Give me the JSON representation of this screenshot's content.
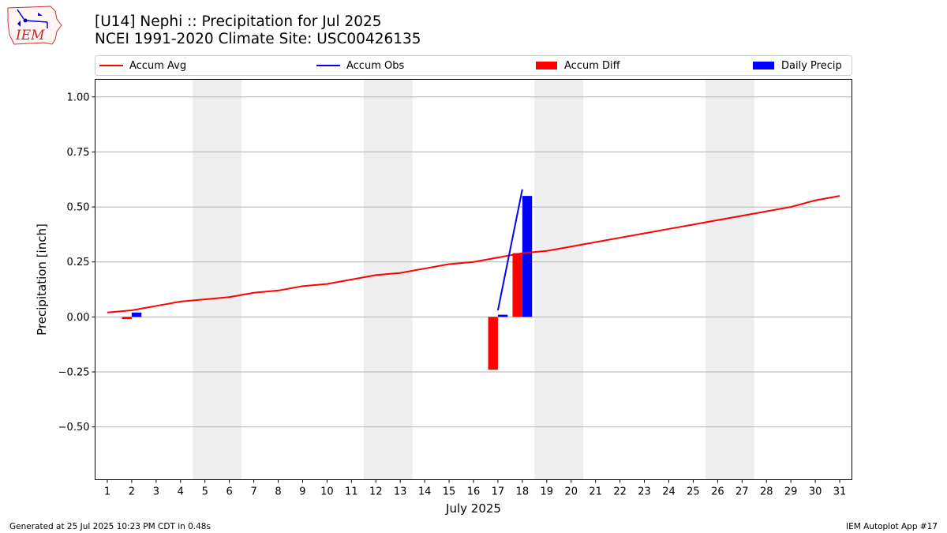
{
  "header": {
    "title_line1": "[U14] Nephi :: Precipitation for Jul 2025",
    "title_line2": "NCEI 1991-2020 Climate Site: USC00426135"
  },
  "logo": {
    "text": "IEM",
    "icon": "iem-iowa-logo"
  },
  "legend": {
    "placement": "top",
    "items": [
      {
        "label": "Accum Avg",
        "kind": "line",
        "color": "#ff0000"
      },
      {
        "label": "Accum Obs",
        "kind": "line",
        "color": "#0000ff"
      },
      {
        "label": "Accum Diff",
        "kind": "bar",
        "color": "#ff0000"
      },
      {
        "label": "Daily Precip",
        "kind": "bar",
        "color": "#0000ff"
      }
    ]
  },
  "footer": {
    "left": "Generated at 25 Jul 2025 10:23 PM CDT in 0.48s",
    "right": "IEM Autoplot App #17"
  },
  "chart_data": {
    "type": "bar",
    "xlabel": "July 2025",
    "ylabel": "Precipitation [inch]",
    "xlim": [
      0.5,
      31.5
    ],
    "ylim": [
      -0.74,
      1.08
    ],
    "yticks": [
      -0.5,
      -0.25,
      0.0,
      0.25,
      0.5,
      0.75,
      1.0
    ],
    "ytick_labels": [
      "−0.50",
      "−0.25",
      "0.00",
      "0.25",
      "0.50",
      "0.75",
      "1.00"
    ],
    "xticks": [
      1,
      2,
      3,
      4,
      5,
      6,
      7,
      8,
      9,
      10,
      11,
      12,
      13,
      14,
      15,
      16,
      17,
      18,
      19,
      20,
      21,
      22,
      23,
      24,
      25,
      26,
      27,
      28,
      29,
      30,
      31
    ],
    "grid": "horizontal",
    "weekend_shading": [
      [
        4.5,
        6.5
      ],
      [
        11.5,
        13.5
      ],
      [
        18.5,
        20.5
      ],
      [
        25.5,
        27.5
      ]
    ],
    "shade_color": "#eeeeee",
    "series": [
      {
        "name": "Accum Avg",
        "kind": "line",
        "color": "#ff0000",
        "x": [
          1,
          2,
          3,
          4,
          5,
          6,
          7,
          8,
          9,
          10,
          11,
          12,
          13,
          14,
          15,
          16,
          17,
          18,
          19,
          20,
          21,
          22,
          23,
          24,
          25,
          26,
          27,
          28,
          29,
          30,
          31
        ],
        "y": [
          0.02,
          0.03,
          0.05,
          0.07,
          0.08,
          0.09,
          0.11,
          0.12,
          0.14,
          0.15,
          0.17,
          0.19,
          0.2,
          0.22,
          0.24,
          0.25,
          0.27,
          0.29,
          0.3,
          0.32,
          0.34,
          0.36,
          0.38,
          0.4,
          0.42,
          0.44,
          0.46,
          0.48,
          0.5,
          0.53,
          0.55
        ]
      },
      {
        "name": "Accum Obs",
        "kind": "line",
        "color": "#0000ff",
        "x": [
          17,
          18
        ],
        "y": [
          0.03,
          0.58
        ]
      },
      {
        "name": "Accum Diff",
        "kind": "bar",
        "color": "#ff0000",
        "x": [
          2,
          17,
          18
        ],
        "y": [
          -0.01,
          -0.24,
          0.29
        ]
      },
      {
        "name": "Daily Precip",
        "kind": "bar",
        "color": "#0000ff",
        "x": [
          2,
          17,
          18
        ],
        "y": [
          0.02,
          0.01,
          0.55
        ]
      }
    ]
  }
}
